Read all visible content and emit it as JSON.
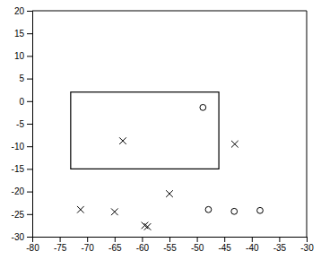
{
  "chart_data": {
    "type": "scatter",
    "xlim": [
      -80,
      -30
    ],
    "ylim": [
      -30,
      20
    ],
    "xticks": [
      -80,
      -75,
      -70,
      -65,
      -60,
      -55,
      -50,
      -45,
      -40,
      -35,
      -30
    ],
    "yticks": [
      -30,
      -25,
      -20,
      -15,
      -10,
      -5,
      0,
      5,
      10,
      15,
      20
    ],
    "grid": false,
    "box": {
      "xlim": [
        -73,
        -46
      ],
      "ylim": [
        -15,
        2
      ],
      "color": "black"
    },
    "series": [
      {
        "marker": "circle",
        "color": "black",
        "x": [
          -48.9,
          -47.9,
          -43.2,
          -38.5
        ],
        "values": [
          -1.4,
          -24.0,
          -24.4,
          -24.2
        ]
      },
      {
        "marker": "x",
        "color": "black",
        "x": [
          -63.5,
          -65.0,
          -59.5,
          -55.0,
          -59.0,
          -43.1,
          -71.2
        ],
        "values": [
          -8.8,
          -24.5,
          -27.5,
          -20.5,
          -27.8,
          -9.5,
          -24.0
        ]
      }
    ]
  }
}
